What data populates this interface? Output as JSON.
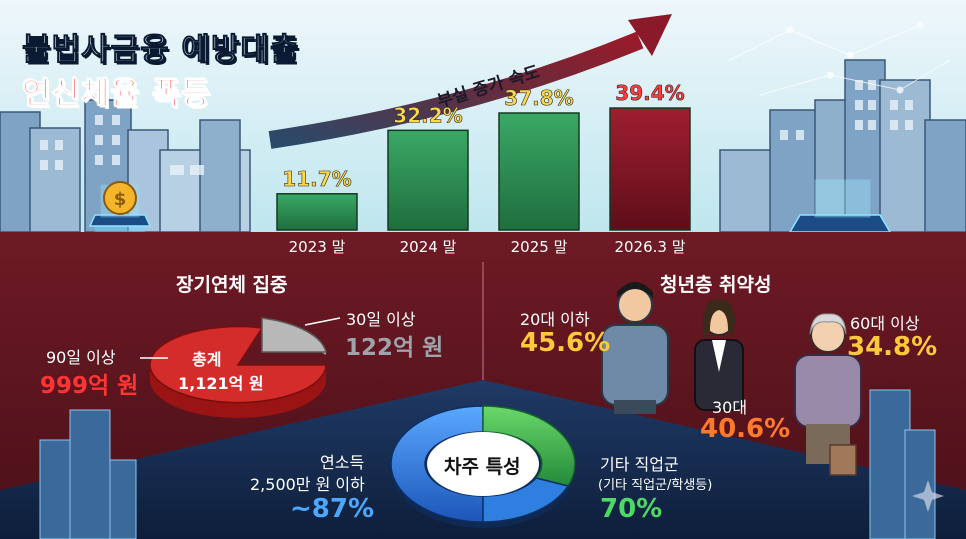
{
  "header": {
    "title_line1": "불법사금융 예방대출",
    "title_line2": "연신체율 폭등"
  },
  "trend_label": "부실 증가 속도",
  "chart_data": {
    "type": "bar",
    "categories": [
      "2023 말",
      "2024 말",
      "2025 말",
      "2026.3 말"
    ],
    "values": [
      11.7,
      32.2,
      37.8,
      39.4
    ],
    "value_labels": [
      "11.7%",
      "32.2%",
      "37.8%",
      "39.4%"
    ],
    "ylim": [
      0,
      42
    ],
    "colors": [
      "#2e8b4f",
      "#2f8f55",
      "#2c9357",
      "#8a1a2a"
    ],
    "label_colors": [
      "#ffd84a",
      "#ffd84a",
      "#ffd84a",
      "#ff3b3b"
    ]
  },
  "long_term": {
    "title": "장기연체 집중",
    "total_label": "총계",
    "total_value": "1,121억 원",
    "over90_label": "90일 이상",
    "over90_value": "999억 원",
    "over30_label": "30일 이상",
    "over30_value": "122억 원",
    "colors": {
      "main": "#d42b2b",
      "side": "#9a1414",
      "small": "#a8a8a8",
      "small_side": "#6e6e6e"
    }
  },
  "youth": {
    "title": "청년층 취약성",
    "groups": [
      {
        "label": "20대 이하",
        "value": "45.6%",
        "color": "#ffc93c"
      },
      {
        "label": "30대",
        "value": "40.6%",
        "color": "#ff7a2a"
      },
      {
        "label": "60대 이상",
        "value": "34.8%",
        "color": "#ffc93c"
      }
    ]
  },
  "borrower": {
    "title": "차주 특성",
    "income_label_1": "연소득",
    "income_label_2": "2,500만 원 이하",
    "income_value": "~87%",
    "job_label": "기타 직업군",
    "job_sub": "(기타 직업군/학생등)",
    "job_value": "70%",
    "colors": {
      "blue": "#2f7fe0",
      "green": "#3fb35a",
      "income": "#4aa8ff",
      "job": "#4cd964"
    }
  }
}
